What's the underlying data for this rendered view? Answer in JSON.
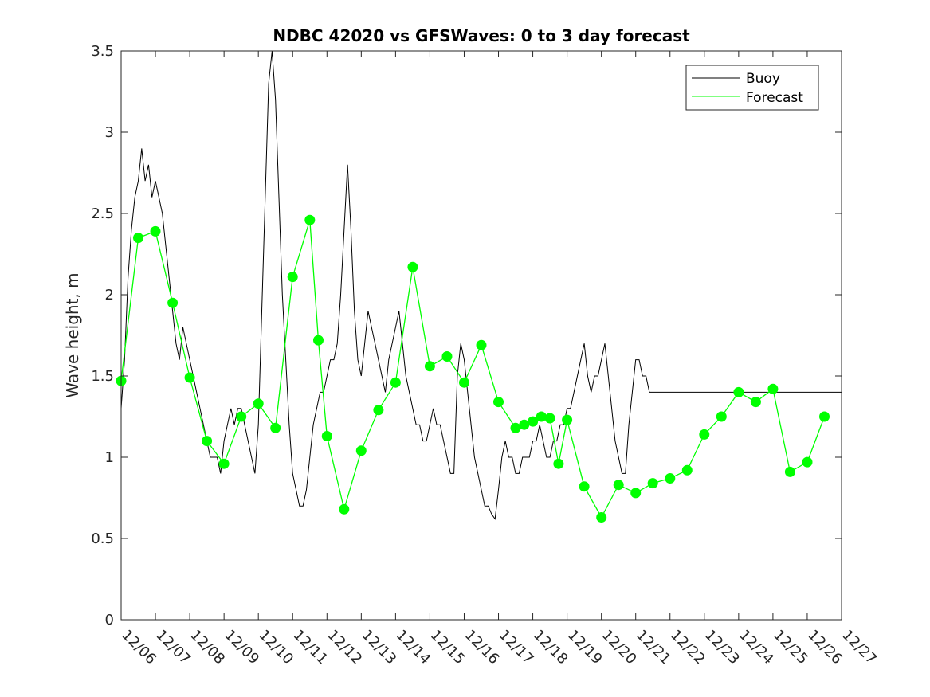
{
  "chart_data": {
    "type": "line",
    "title": "NDBC 42020 vs GFSWaves: 0 to 3 day forecast",
    "xlabel": "",
    "ylabel": "Wave height, m",
    "xlim": [
      0,
      21
    ],
    "ylim": [
      0,
      3.5
    ],
    "x_tick_labels": [
      "12/06",
      "12/07",
      "12/08",
      "12/09",
      "12/10",
      "12/11",
      "12/12",
      "12/13",
      "12/14",
      "12/15",
      "12/16",
      "12/17",
      "12/18",
      "12/19",
      "12/20",
      "12/21",
      "12/22",
      "12/23",
      "12/24",
      "12/25",
      "12/26",
      "12/27"
    ],
    "y_ticks": [
      0,
      0.5,
      1,
      1.5,
      2,
      2.5,
      3,
      3.5
    ],
    "y_tick_labels": [
      "0",
      "0.5",
      "1",
      "1.5",
      "2",
      "2.5",
      "3",
      "3.5"
    ],
    "legend": {
      "location": "top-right",
      "entries": [
        "Buoy",
        "Forecast"
      ]
    },
    "colors": {
      "buoy": "#000000",
      "forecast": "#00ff00",
      "axis": "#262626"
    },
    "series": [
      {
        "name": "Buoy",
        "color": "#000000",
        "x": [
          0,
          0.1,
          0.2,
          0.3,
          0.4,
          0.5,
          0.6,
          0.7,
          0.8,
          0.9,
          1.0,
          1.1,
          1.2,
          1.3,
          1.4,
          1.5,
          1.6,
          1.7,
          1.8,
          1.9,
          2.0,
          2.1,
          2.2,
          2.3,
          2.4,
          2.5,
          2.6,
          2.7,
          2.8,
          2.9,
          3.0,
          3.1,
          3.2,
          3.3,
          3.4,
          3.5,
          3.6,
          3.7,
          3.8,
          3.9,
          4.0,
          4.1,
          4.2,
          4.3,
          4.4,
          4.5,
          4.6,
          4.7,
          4.8,
          4.9,
          5.0,
          5.1,
          5.2,
          5.3,
          5.4,
          5.5,
          5.6,
          5.7,
          5.8,
          5.9,
          6.0,
          6.1,
          6.2,
          6.3,
          6.4,
          6.5,
          6.6,
          6.7,
          6.8,
          6.9,
          7.0,
          7.1,
          7.2,
          7.3,
          7.4,
          7.5,
          7.6,
          7.7,
          7.8,
          7.9,
          8.0,
          8.1,
          8.2,
          8.3,
          8.4,
          8.5,
          8.6,
          8.7,
          8.8,
          8.9,
          9.0,
          9.1,
          9.2,
          9.3,
          9.4,
          9.5,
          9.6,
          9.7,
          9.8,
          9.9,
          10.0,
          10.1,
          10.2,
          10.3,
          10.4,
          10.5,
          10.6,
          10.7,
          10.8,
          10.9,
          11.0,
          11.1,
          11.2,
          11.3,
          11.4,
          11.5,
          11.6,
          11.7,
          11.8,
          11.9,
          12.0,
          12.1,
          12.2,
          12.3,
          12.4,
          12.5,
          12.6,
          12.7,
          12.8,
          12.9,
          13.0,
          13.1,
          13.2,
          13.3,
          13.4,
          13.5,
          13.6,
          13.7,
          13.8,
          13.9,
          14.0,
          14.1,
          14.2,
          14.3,
          14.4,
          14.5,
          14.6,
          14.7,
          14.8,
          14.9,
          15.0,
          15.1,
          15.2,
          15.3,
          15.4,
          15.5,
          15.6,
          15.7,
          15.8,
          15.9,
          16.0,
          16.1,
          16.2,
          16.3,
          16.4,
          16.5,
          16.6,
          16.7,
          16.8,
          16.9,
          17.0,
          17.1,
          17.2,
          17.3,
          17.4,
          17.5,
          17.6,
          17.7,
          17.8,
          17.9,
          18.0,
          18.1,
          18.2,
          18.3,
          18.4,
          18.5,
          18.6,
          18.7,
          18.8,
          18.9,
          19.0,
          19.1,
          19.2,
          19.3,
          19.4,
          19.5,
          19.6,
          19.7,
          19.8,
          19.9,
          20.0,
          20.1,
          20.2,
          20.3,
          20.4,
          20.5,
          20.6,
          20.7,
          20.8,
          20.9,
          21.0
        ],
        "y": [
          1.3,
          1.6,
          2.1,
          2.4,
          2.6,
          2.7,
          2.9,
          2.7,
          2.8,
          2.6,
          2.7,
          2.6,
          2.5,
          2.3,
          2.1,
          1.9,
          1.7,
          1.6,
          1.8,
          1.7,
          1.6,
          1.5,
          1.4,
          1.3,
          1.2,
          1.1,
          1.0,
          1.0,
          1.0,
          0.9,
          1.1,
          1.2,
          1.3,
          1.2,
          1.3,
          1.3,
          1.2,
          1.1,
          1.0,
          0.9,
          1.2,
          1.9,
          2.6,
          3.3,
          3.5,
          3.2,
          2.6,
          2.0,
          1.6,
          1.2,
          0.9,
          0.8,
          0.7,
          0.7,
          0.8,
          1.0,
          1.2,
          1.3,
          1.4,
          1.4,
          1.5,
          1.6,
          1.6,
          1.7,
          2.0,
          2.4,
          2.8,
          2.4,
          1.9,
          1.6,
          1.5,
          1.7,
          1.9,
          1.8,
          1.7,
          1.6,
          1.5,
          1.4,
          1.6,
          1.7,
          1.8,
          1.9,
          1.7,
          1.5,
          1.4,
          1.3,
          1.2,
          1.2,
          1.1,
          1.1,
          1.2,
          1.3,
          1.2,
          1.2,
          1.1,
          1.0,
          0.9,
          0.9,
          1.5,
          1.7,
          1.6,
          1.4,
          1.2,
          1.0,
          0.9,
          0.8,
          0.7,
          0.7,
          0.65,
          0.62,
          0.8,
          1.0,
          1.1,
          1.0,
          1.0,
          0.9,
          0.9,
          1.0,
          1.0,
          1.0,
          1.1,
          1.1,
          1.2,
          1.1,
          1.0,
          1.0,
          1.1,
          1.1,
          1.2,
          1.2,
          1.3,
          1.3,
          1.4,
          1.5,
          1.6,
          1.7,
          1.5,
          1.4,
          1.5,
          1.5,
          1.6,
          1.7,
          1.5,
          1.3,
          1.1,
          1.0,
          0.9,
          0.9,
          1.2,
          1.4,
          1.6,
          1.6,
          1.5,
          1.5,
          1.4,
          1.4,
          1.4,
          1.4,
          1.4,
          1.4,
          1.4,
          1.4,
          1.4,
          1.4,
          1.4,
          1.4,
          1.4,
          1.4,
          1.4,
          1.4,
          1.4,
          1.4,
          1.4,
          1.4,
          1.4,
          1.4,
          1.4,
          1.4,
          1.4,
          1.4,
          1.4,
          1.4,
          1.4,
          1.4,
          1.4,
          1.4,
          1.4,
          1.4,
          1.4,
          1.4,
          1.4,
          1.4,
          1.4,
          1.4,
          1.4,
          1.4,
          1.4,
          1.4,
          1.4,
          1.4,
          1.4,
          1.4,
          1.4,
          1.4,
          1.4,
          1.4,
          1.4,
          1.4,
          1.4,
          1.4,
          1.4
        ]
      }
    ],
    "forecast_points": {
      "name": "Forecast",
      "color": "#00ff00",
      "x": [
        0.0,
        0.5,
        1.0,
        1.5,
        2.0,
        2.5,
        3.0,
        3.5,
        4.0,
        4.5,
        5.0,
        5.5,
        5.75,
        6.0,
        6.5,
        7.0,
        7.5,
        8.0,
        8.5,
        9.0,
        9.5,
        10.0,
        10.5,
        11.0,
        11.5,
        11.75,
        12.0,
        12.25,
        12.5,
        12.75,
        13.0,
        13.5,
        14.0,
        14.5,
        15.0,
        15.5,
        16.0,
        16.5,
        17.0,
        17.5,
        18.0,
        18.5,
        19.0,
        19.5,
        20.0,
        20.5
      ],
      "y": [
        1.47,
        2.35,
        2.39,
        1.95,
        1.49,
        1.1,
        0.96,
        1.25,
        1.33,
        1.18,
        2.11,
        2.46,
        1.72,
        1.13,
        0.68,
        1.04,
        1.29,
        1.46,
        2.17,
        1.56,
        1.62,
        1.46,
        1.69,
        1.34,
        1.18,
        1.2,
        1.22,
        1.25,
        1.24,
        0.96,
        1.23,
        0.82,
        0.63,
        0.83,
        0.78,
        0.84,
        0.87,
        0.92,
        1.14,
        1.25,
        1.4,
        1.34,
        1.42,
        0.91,
        0.97,
        1.25
      ]
    }
  }
}
